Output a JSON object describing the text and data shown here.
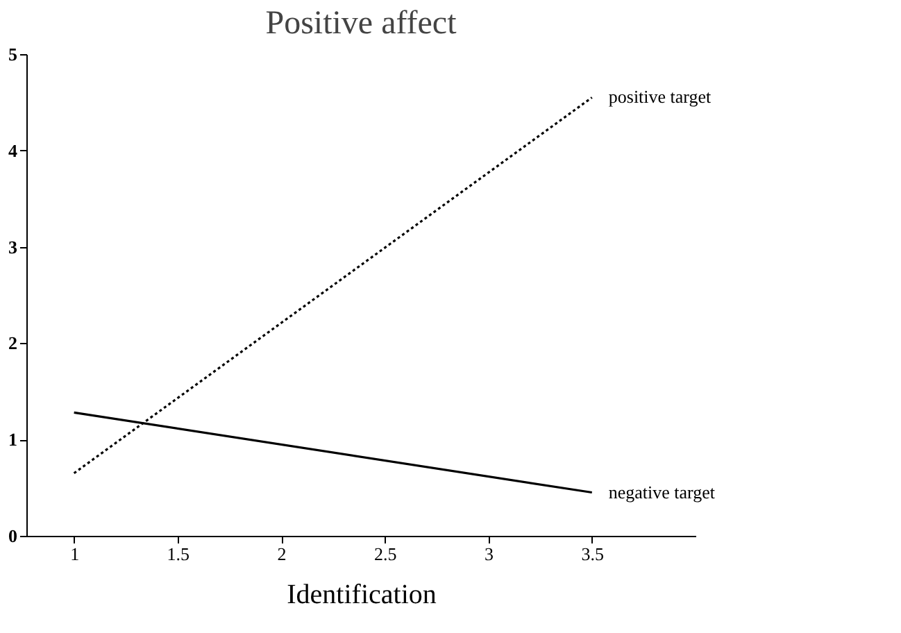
{
  "chart_data": {
    "type": "line",
    "title": "Positive affect",
    "xlabel": "Identification",
    "x": [
      1,
      3.5
    ],
    "series": [
      {
        "name": "positive target",
        "color": "#000000",
        "values": [
          0.65,
          4.55
        ],
        "line_style": "dotted"
      },
      {
        "name": "negative target",
        "color": "#000000",
        "values": [
          1.28,
          0.45
        ],
        "line_style": "solid"
      }
    ],
    "xlim": [
      0.77,
      4.0
    ],
    "xticks": [
      1,
      1.5,
      2,
      2.5,
      3,
      3.5
    ],
    "ylim": [
      0,
      5
    ],
    "yticks": [
      0,
      1,
      2,
      3,
      4,
      5
    ],
    "grid": false,
    "legend": false,
    "marker": "none"
  }
}
